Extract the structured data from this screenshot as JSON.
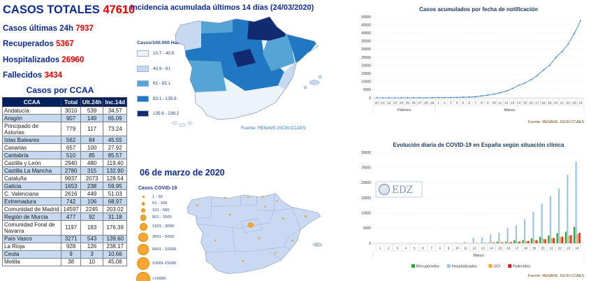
{
  "header": {
    "title": "CASOS TOTALES",
    "total": "47610",
    "stats": [
      {
        "label": "Casos últimas 24h",
        "value": "7937"
      },
      {
        "label": "Recuperados",
        "value": "5367"
      },
      {
        "label": "Hospitalizados",
        "value": "26960"
      },
      {
        "label": "Fallecidos",
        "value": "3434"
      }
    ]
  },
  "table": {
    "title": "Casos por CCAA",
    "columns": [
      "CCAA",
      "Total",
      "Ult.24h",
      "Inc.14d"
    ],
    "rows": [
      [
        "Andalucía",
        "3010",
        "539",
        "34.57"
      ],
      [
        "Aragón",
        "907",
        "149",
        "65.09"
      ],
      [
        "Principado de Asturias",
        "779",
        "117",
        "73.24"
      ],
      [
        "Islas Baleares",
        "562",
        "84",
        "45.55"
      ],
      [
        "Canarias",
        "657",
        "100",
        "27.92"
      ],
      [
        "Cantabria",
        "510",
        "85",
        "85.57"
      ],
      [
        "Castilla y León",
        "2940",
        "480",
        "119.40"
      ],
      [
        "Castilla La Mancha",
        "2780",
        "315",
        "132.90"
      ],
      [
        "Cataluña",
        "9937",
        "2073",
        "128.54"
      ],
      [
        "Galicia",
        "1653",
        "238",
        "59.95"
      ],
      [
        "C. Valenciana",
        "2616",
        "449",
        "51.03"
      ],
      [
        "Extremadura",
        "742",
        "106",
        "68.97"
      ],
      [
        "Comunidad de Madrid",
        "14597",
        "2245",
        "203.02"
      ],
      [
        "Región de Murcia",
        "477",
        "92",
        "31.18"
      ],
      [
        "Comunidad Foral de Navarra",
        "1197",
        "183",
        "176.39"
      ],
      [
        "País Vasco",
        "3271",
        "543",
        "139.60"
      ],
      [
        "La Rioja",
        "928",
        "126",
        "238.17"
      ],
      [
        "Ceuta",
        "9",
        "3",
        "10.66"
      ],
      [
        "Melilla",
        "38",
        "10",
        "45.08"
      ]
    ]
  },
  "map_incidence": {
    "title": "Incidencia acumulada últimos 14 días (24/03/2020)",
    "legend_title": "Casos/100.000 Hab.",
    "bin_colors": [
      "#edf3fb",
      "#c6d9f0",
      "#55a4d6",
      "#1f78c1",
      "#122a70"
    ],
    "bin_labels": [
      "10.7 - 40.9",
      "40.9 - 61",
      "61 - 83.1",
      "83.1 - 135.6",
      "135.6 - 238.2"
    ],
    "regions": {
      "galicia": 1,
      "asturias": 2,
      "cantabria": 3,
      "norte_navy": 4,
      "castilla_leon": 3,
      "aragon": 2,
      "cataluna": 3,
      "madrid": 4,
      "castilla_mancha": 3,
      "extremadura": 2,
      "valencia": 1,
      "sur_base": 0,
      "baleares": 1,
      "canarias": 0
    },
    "source": "Fuente: RENAVE.ISCIII-CCAES"
  },
  "map_bubbles": {
    "title": "06 de marzo de 2020",
    "legend_title": "Casos COVID-19",
    "bin_labels": [
      "1 - 50",
      "51 - 100",
      "101 - 500",
      "501 - 1500",
      "1501 - 3000",
      "3001 - 5000",
      "5001 - 10000",
      "10001-15000",
      ">15000"
    ],
    "bubble_color": "#f6a733"
  },
  "chart_data": [
    {
      "type": "line",
      "title": "Casos acumulados por fecha de notificación",
      "x_labels": [
        "20",
        "21",
        "22",
        "23",
        "24",
        "25",
        "26",
        "27",
        "28",
        "29",
        "1",
        "2",
        "3",
        "4",
        "5",
        "6",
        "7",
        "8",
        "9",
        "10",
        "11",
        "12",
        "13",
        "14",
        "15",
        "16",
        "17",
        "18",
        "19",
        "20",
        "21",
        "22",
        "23",
        "24"
      ],
      "month_groups": [
        {
          "label": "Febrero",
          "count": 10
        },
        {
          "label": "Marzo",
          "count": 24
        }
      ],
      "values": [
        3,
        3,
        3,
        4,
        9,
        15,
        25,
        32,
        45,
        84,
        120,
        165,
        228,
        282,
        401,
        525,
        674,
        1231,
        1695,
        2277,
        3146,
        4231,
        5753,
        7753,
        9191,
        11178,
        13716,
        17147,
        19980,
        24926,
        28572,
        33089,
        39673,
        47610
      ],
      "ylim": [
        0,
        50000
      ],
      "ytick": 5000,
      "line_color": "#5b9bd5",
      "marker_color": "#2e75b6",
      "source": "Fuente: RENAVE. ISCIII-CCAES"
    },
    {
      "type": "bar",
      "title": "Evolución diaria de COVID-19 en España según situación clínica",
      "categories": [
        "1",
        "2",
        "3",
        "4",
        "5",
        "6",
        "7",
        "8",
        "9",
        "10",
        "11",
        "12",
        "13",
        "14",
        "15",
        "16",
        "17",
        "18",
        "19",
        "20",
        "21",
        "22",
        "23",
        "24"
      ],
      "month_label": "Marzo",
      "series": [
        {
          "name": "Recuperados",
          "color": "#30a330",
          "values": [
            0,
            0,
            0,
            0,
            0,
            0,
            2,
            2,
            30,
            30,
            32,
            32,
            32,
            135,
            517,
            530,
            1028,
            1081,
            1588,
            2125,
            2575,
            3355,
            3794,
            5367
          ]
        },
        {
          "name": "Hospitalizados",
          "color": "#9dc3e6",
          "values": [
            0,
            0,
            0,
            0,
            0,
            10,
            30,
            70,
            130,
            230,
            440,
            1800,
            1950,
            2940,
            3480,
            5100,
            5880,
            7920,
            10400,
            13100,
            15600,
            18100,
            22600,
            26960
          ]
        },
        {
          "name": "UCI",
          "color": "#ffa126",
          "values": [
            0,
            0,
            0,
            0,
            0,
            0,
            5,
            10,
            20,
            35,
            70,
            90,
            130,
            190,
            290,
            390,
            510,
            770,
            1050,
            1450,
            1785,
            2090,
            2500,
            3000
          ]
        },
        {
          "name": "Fallecidos",
          "color": "#e21c1c",
          "values": [
            0,
            0,
            1,
            2,
            3,
            5,
            10,
            17,
            28,
            35,
            47,
            84,
            133,
            196,
            288,
            342,
            533,
            767,
            1002,
            1326,
            1720,
            2182,
            2696,
            3434
          ]
        }
      ],
      "ylim": [
        0,
        30000
      ],
      "ytick": 5000,
      "watermark": "EDZ",
      "source": "Fuente: RENAVE. ISCIII-CCAES"
    }
  ]
}
